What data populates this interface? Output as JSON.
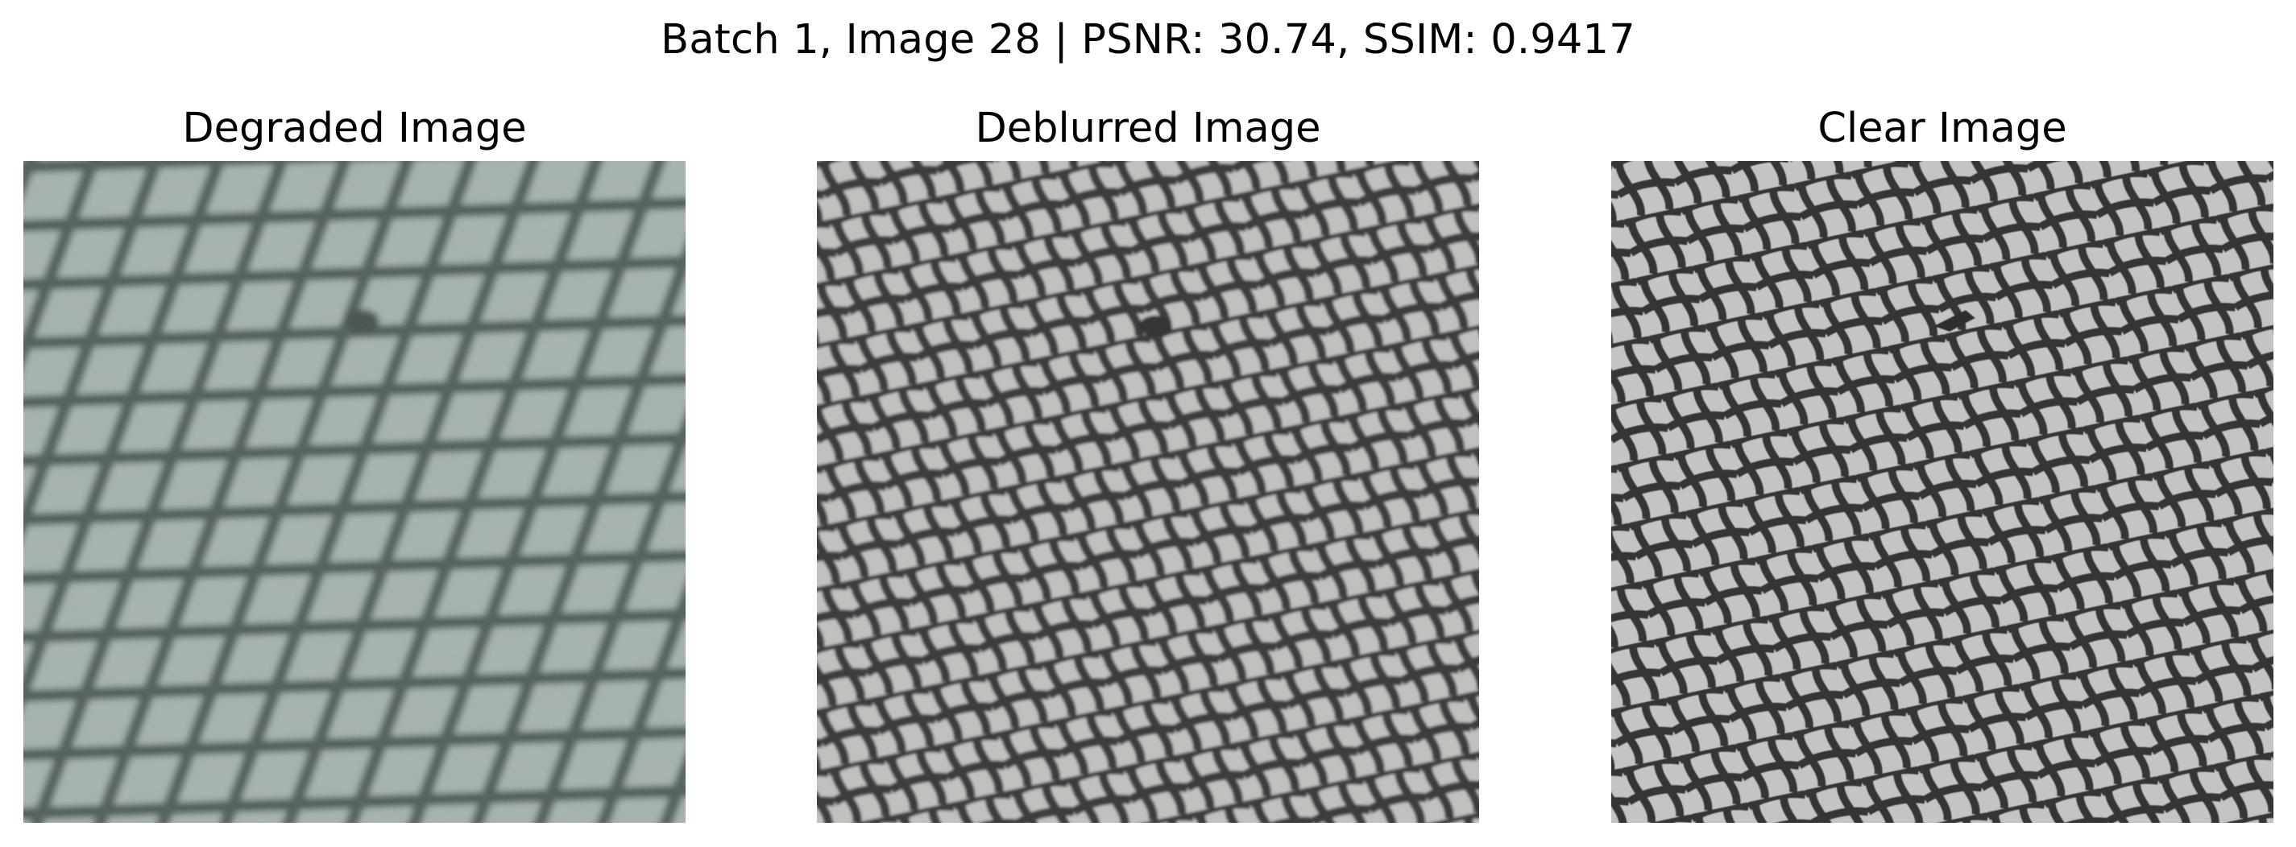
{
  "figure": {
    "suptitle": "Batch 1, Image 28 | PSNR: 30.74, SSIM: 0.9417",
    "panels": [
      {
        "title": "Degraded Image",
        "image": "blurred-noisy-diamond-mesh-photo",
        "background_color": "#9aa8a4",
        "mesh_color": "#3c4a48"
      },
      {
        "title": "Deblurred Image",
        "image": "restored-diamond-mesh-photo",
        "background_color": "#b9b9b6",
        "mesh_color": "#3b3b3a"
      },
      {
        "title": "Clear Image",
        "image": "ground-truth-diamond-mesh-photo",
        "background_color": "#bfbfbd",
        "mesh_color": "#343434"
      }
    ]
  }
}
